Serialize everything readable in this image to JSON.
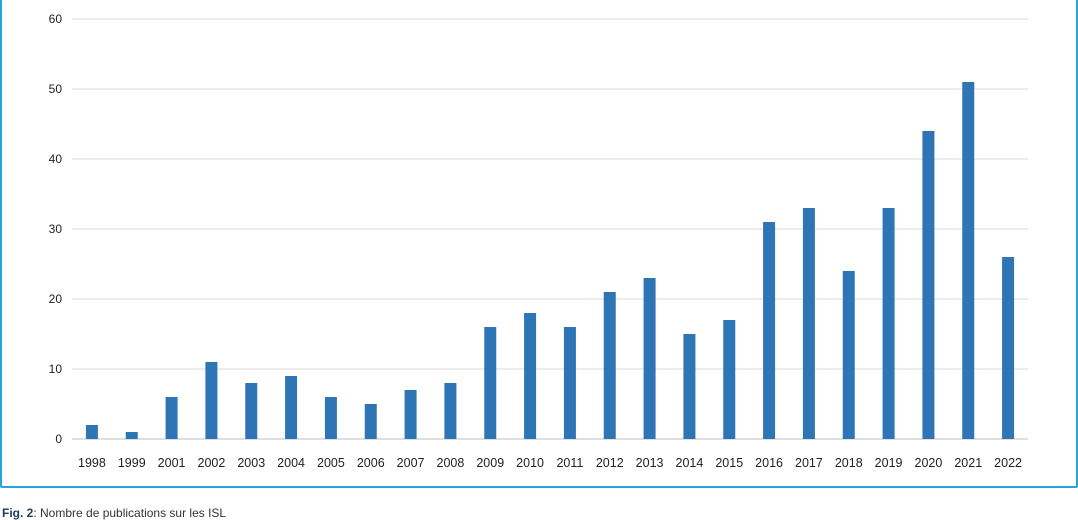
{
  "chart_data": {
    "type": "bar",
    "categories": [
      "1998",
      "1999",
      "2001",
      "2002",
      "2003",
      "2004",
      "2005",
      "2006",
      "2007",
      "2008",
      "2009",
      "2010",
      "2011",
      "2012",
      "2013",
      "2014",
      "2015",
      "2016",
      "2017",
      "2018",
      "2019",
      "2020",
      "2021",
      "2022"
    ],
    "values": [
      2,
      1,
      6,
      11,
      8,
      9,
      6,
      5,
      7,
      8,
      16,
      18,
      16,
      21,
      23,
      15,
      17,
      31,
      33,
      24,
      33,
      44,
      51,
      26
    ],
    "ylim": [
      0,
      60
    ],
    "yticks": [
      0,
      10,
      20,
      30,
      40,
      50,
      60
    ],
    "grid": true,
    "bar_color": "#2e75b6",
    "title": "",
    "xlabel": "",
    "ylabel": ""
  },
  "caption": {
    "label": "Fig. 2",
    "text": ": Nombre de publications sur les ISL"
  },
  "colors": {
    "frame": "#2aa3d6",
    "grid": "#d9d9d9",
    "text": "#222222"
  }
}
